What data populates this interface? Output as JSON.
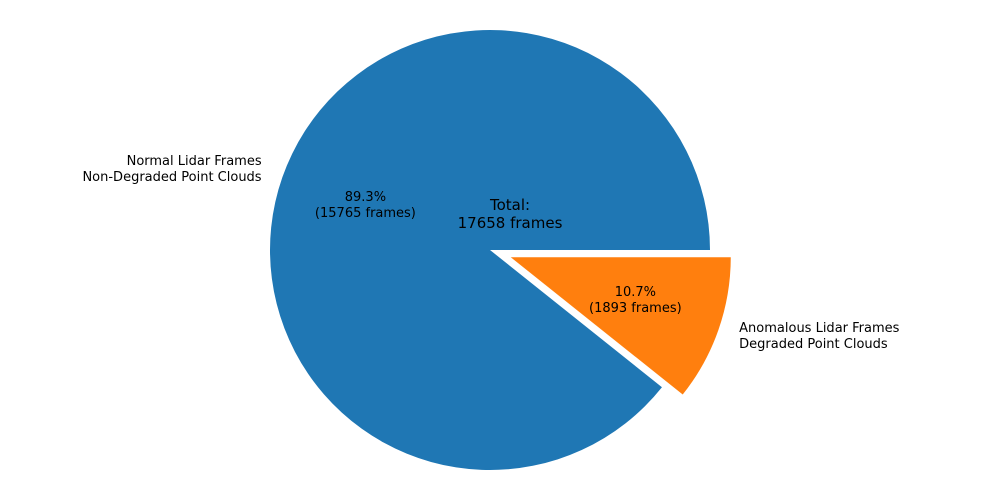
{
  "chart_data": {
    "type": "pie",
    "categories": [
      "Normal Lidar Frames\nNon-Degraded Point Clouds",
      "Anomalous Lidar Frames\nDegraded Point Clouds"
    ],
    "values": [
      15765,
      1893
    ],
    "value_labels": [
      "89.3%\n(15765 frames)",
      "10.7%\n(1893 frames)"
    ],
    "colors": [
      "#1f77b4",
      "#ff7f0e"
    ],
    "explode": [
      0,
      0.1
    ],
    "annotation": "Total:\n17658 frames"
  }
}
